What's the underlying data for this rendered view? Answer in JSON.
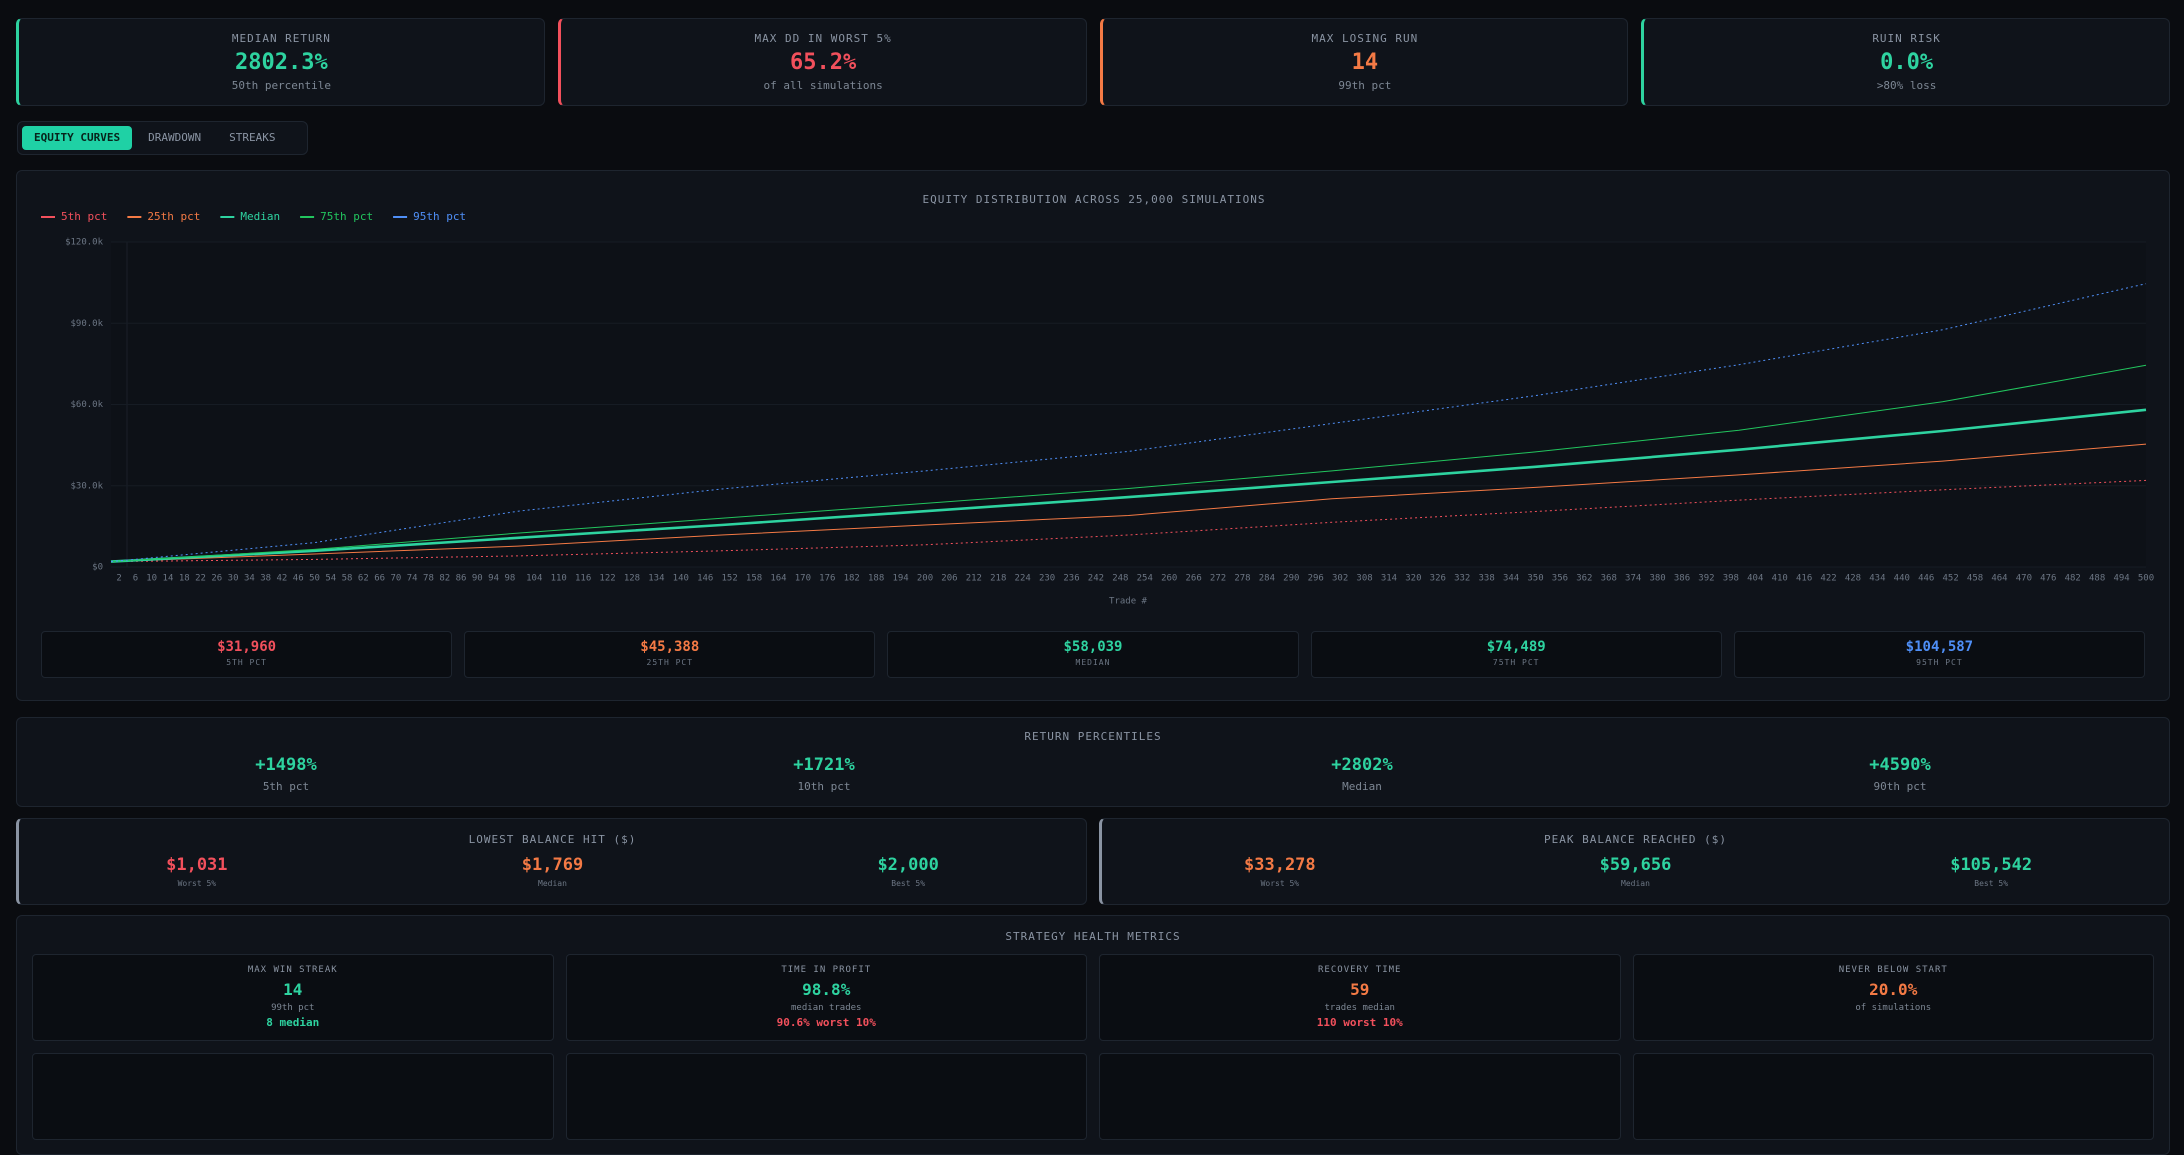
{
  "stats": [
    {
      "label": "MEDIAN RETURN",
      "value": "2802.3%",
      "sub": "50th percentile"
    },
    {
      "label": "MAX DD IN WORST 5%",
      "value": "65.2%",
      "sub": "of all simulations"
    },
    {
      "label": "MAX LOSING RUN",
      "value": "14",
      "sub": "99th pct"
    },
    {
      "label": "RUIN RISK",
      "value": "0.0%",
      "sub": ">80% loss"
    }
  ],
  "tabs": [
    "EQUITY CURVES",
    "DRAWDOWN",
    "STREAKS"
  ],
  "chart_data": {
    "type": "line",
    "title": "EQUITY DISTRIBUTION ACROSS 25,000 SIMULATIONS",
    "x_label": "Trade #",
    "x": [
      0,
      50,
      100,
      150,
      200,
      250,
      300,
      350,
      400,
      450,
      500
    ],
    "series": [
      {
        "name": "5th pct",
        "color": "#f2505c",
        "style": "dotted",
        "values": [
          2000,
          2800,
          4100,
          6000,
          8200,
          11800,
          16500,
          20500,
          24700,
          28500,
          31960
        ]
      },
      {
        "name": "25th pct",
        "color": "#f47a45",
        "style": "solid",
        "values": [
          2000,
          4800,
          7700,
          11800,
          15500,
          19000,
          25200,
          29400,
          34000,
          39100,
          45388
        ]
      },
      {
        "name": "Median",
        "color": "#2ed3a0",
        "style": "bold",
        "values": [
          2000,
          6000,
          10800,
          15500,
          20600,
          25800,
          31400,
          37000,
          43300,
          50200,
          58039
        ]
      },
      {
        "name": "75th pct",
        "color": "#22c55e",
        "style": "solid",
        "values": [
          2000,
          6500,
          12500,
          18000,
          23500,
          29000,
          35500,
          42500,
          50500,
          61000,
          74489
        ]
      },
      {
        "name": "95th pct",
        "color": "#4f8ff7",
        "style": "dotted",
        "values": [
          2000,
          9000,
          20600,
          28800,
          35500,
          42700,
          53000,
          63300,
          74700,
          87600,
          104587
        ]
      }
    ],
    "xlim": [
      0,
      500
    ],
    "xticks": [
      2,
      6,
      10,
      14,
      18,
      22,
      26,
      30,
      34,
      38,
      42,
      46,
      50,
      54,
      58,
      62,
      66,
      70,
      74,
      78,
      82,
      86,
      90,
      94,
      98,
      104,
      110,
      116,
      122,
      128,
      134,
      140,
      146,
      152,
      158,
      164,
      170,
      176,
      182,
      188,
      194,
      200,
      206,
      212,
      218,
      224,
      230,
      236,
      242,
      248,
      254,
      260,
      266,
      272,
      278,
      284,
      290,
      296,
      302,
      308,
      314,
      320,
      326,
      332,
      338,
      344,
      350,
      356,
      362,
      368,
      374,
      380,
      386,
      392,
      398,
      404,
      410,
      416,
      422,
      428,
      434,
      440,
      446,
      452,
      458,
      464,
      470,
      476,
      482,
      488,
      494,
      500
    ],
    "ylim": [
      0,
      120000
    ],
    "yticks": [
      {
        "value": 0,
        "label": "$0"
      },
      {
        "value": 30000,
        "label": "$30.0k"
      },
      {
        "value": 60000,
        "label": "$60.0k"
      },
      {
        "value": 90000,
        "label": "$90.0k"
      },
      {
        "value": 120000,
        "label": "$120.0k"
      }
    ],
    "grid": true,
    "legend": "top-left"
  },
  "final_cards": [
    {
      "value": "$31,960",
      "name": "5TH PCT"
    },
    {
      "value": "$45,388",
      "name": "25TH PCT"
    },
    {
      "value": "$58,039",
      "name": "MEDIAN"
    },
    {
      "value": "$74,489",
      "name": "75TH PCT"
    },
    {
      "value": "$104,587",
      "name": "95TH PCT"
    }
  ],
  "return_percentiles": {
    "title": "RETURN PERCENTILES",
    "items": [
      {
        "value": "+1498%",
        "label": "5th pct"
      },
      {
        "value": "+1721%",
        "label": "10th pct"
      },
      {
        "value": "+2802%",
        "label": "Median"
      },
      {
        "value": "+4590%",
        "label": "90th pct"
      }
    ]
  },
  "lowest_balance": {
    "title": "LOWEST BALANCE HIT ($)",
    "items": [
      {
        "value": "$1,031",
        "label": "Worst 5%"
      },
      {
        "value": "$1,769",
        "label": "Median"
      },
      {
        "value": "$2,000",
        "label": "Best 5%"
      }
    ]
  },
  "peak_balance": {
    "title": "PEAK BALANCE REACHED ($)",
    "items": [
      {
        "value": "$33,278",
        "label": "Worst 5%"
      },
      {
        "value": "$59,656",
        "label": "Median"
      },
      {
        "value": "$105,542",
        "label": "Best 5%"
      }
    ]
  },
  "health": {
    "title": "STRATEGY HEALTH METRICS",
    "cards": [
      {
        "title": "MAX WIN STREAK",
        "value": "14",
        "sub": "99th pct",
        "extra": "8 median"
      },
      {
        "title": "TIME IN PROFIT",
        "value": "98.8%",
        "sub": "median trades",
        "extra": "90.6% worst 10%"
      },
      {
        "title": "RECOVERY TIME",
        "value": "59",
        "sub": "trades median",
        "extra": "110 worst 10%"
      },
      {
        "title": "NEVER BELOW START",
        "value": "20.0%",
        "sub": "of simulations"
      }
    ]
  }
}
